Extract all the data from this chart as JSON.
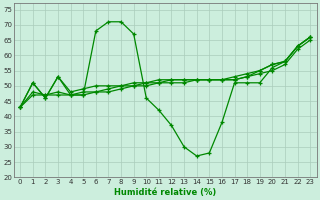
{
  "xlabel": "Humidité relative (%)",
  "bg_color": "#cceedd",
  "grid_color": "#aaccbb",
  "line_color": "#008800",
  "x": [
    0,
    1,
    2,
    3,
    4,
    5,
    6,
    7,
    8,
    9,
    10,
    11,
    12,
    13,
    14,
    15,
    16,
    17,
    18,
    19,
    20,
    21,
    22,
    23
  ],
  "line1": [
    43,
    51,
    46,
    53,
    47,
    47,
    68,
    71,
    71,
    67,
    46,
    42,
    37,
    30,
    27,
    28,
    38,
    51,
    51,
    51,
    56,
    58,
    63,
    66
  ],
  "line2": [
    43,
    51,
    46,
    53,
    48,
    49,
    50,
    50,
    50,
    51,
    51,
    52,
    52,
    52,
    52,
    52,
    52,
    52,
    53,
    54,
    55,
    57,
    62,
    65
  ],
  "line3": [
    43,
    48,
    47,
    48,
    47,
    48,
    48,
    49,
    50,
    50,
    51,
    51,
    52,
    52,
    52,
    52,
    52,
    53,
    54,
    55,
    57,
    58,
    63,
    66
  ],
  "line4": [
    43,
    47,
    47,
    47,
    47,
    47,
    48,
    48,
    49,
    50,
    50,
    51,
    51,
    51,
    52,
    52,
    52,
    52,
    53,
    55,
    57,
    58,
    63,
    66
  ],
  "ylim": [
    20,
    77
  ],
  "yticks": [
    20,
    25,
    30,
    35,
    40,
    45,
    50,
    55,
    60,
    65,
    70,
    75
  ],
  "xticks": [
    0,
    1,
    2,
    3,
    4,
    5,
    6,
    7,
    8,
    9,
    10,
    11,
    12,
    13,
    14,
    15,
    16,
    17,
    18,
    19,
    20,
    21,
    22,
    23
  ],
  "figw": 3.2,
  "figh": 2.0,
  "dpi": 100
}
